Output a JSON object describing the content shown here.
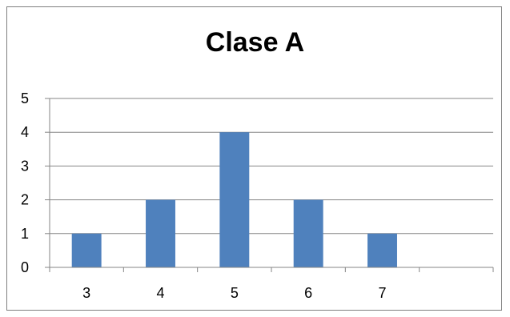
{
  "chart_data": {
    "type": "bar",
    "title": "Clase A",
    "xlabel": "",
    "ylabel": "",
    "categories": [
      "3",
      "4",
      "5",
      "6",
      "7",
      ""
    ],
    "values": [
      1,
      2,
      4,
      2,
      1,
      null
    ],
    "ylim": [
      0,
      5
    ],
    "yticks": [
      0,
      1,
      2,
      3,
      4,
      5
    ],
    "grid": true,
    "legend": "none",
    "bar_color": "#4f81bd",
    "grid_color": "#868686"
  }
}
